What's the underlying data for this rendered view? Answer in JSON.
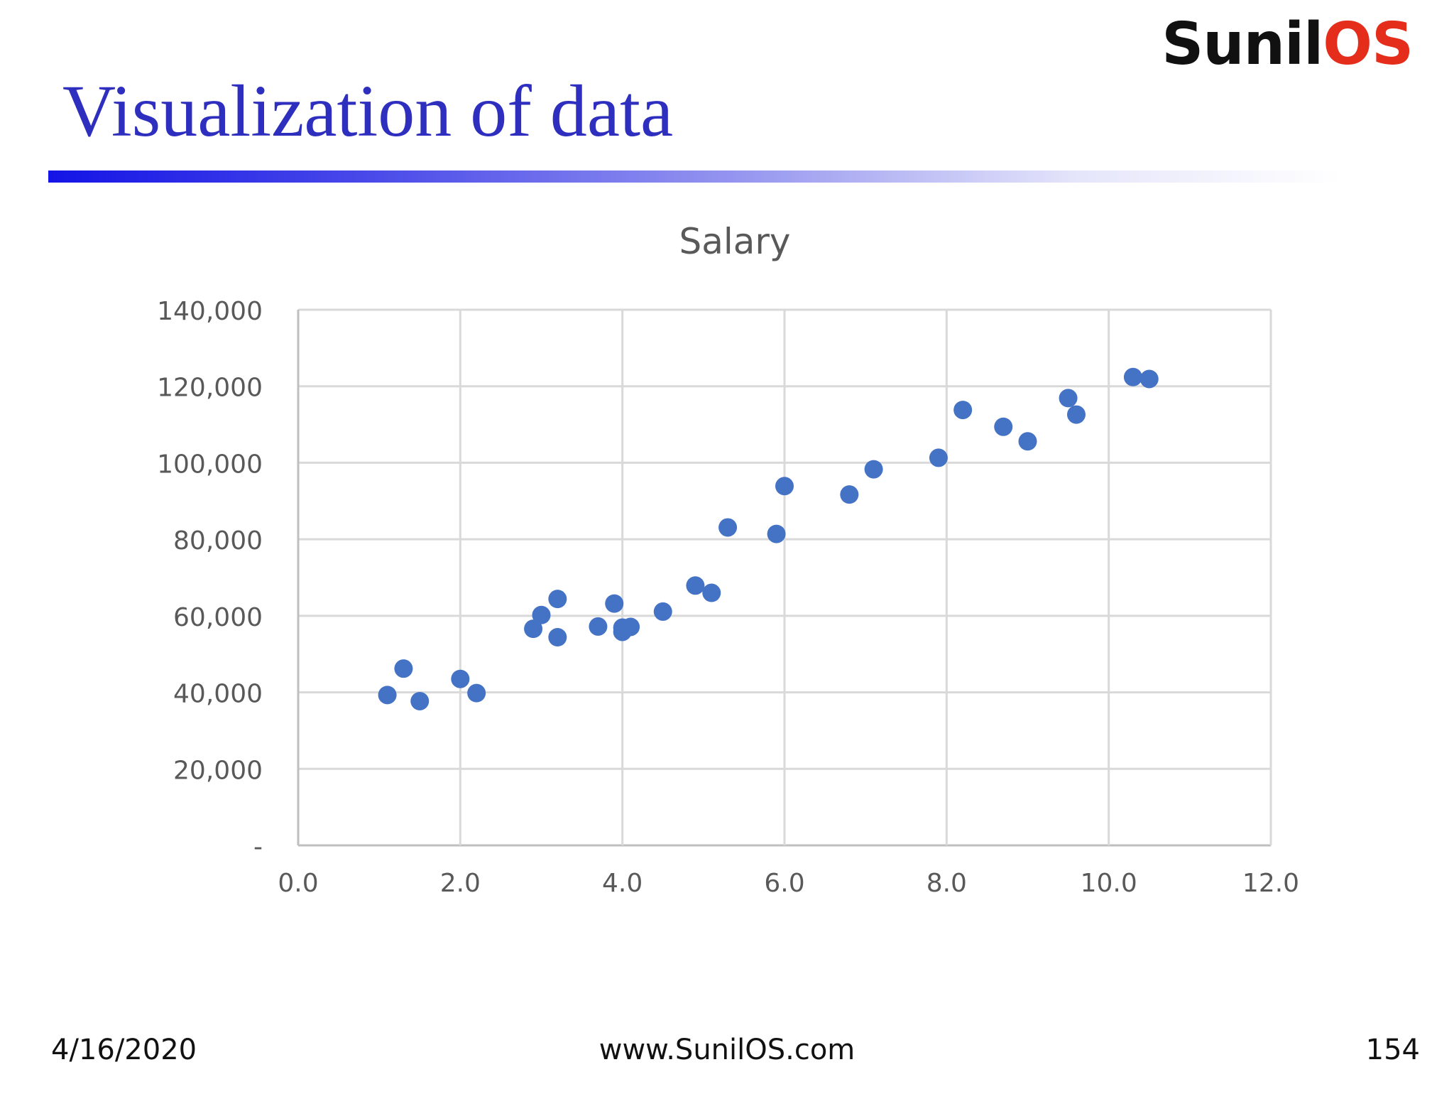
{
  "header": {
    "logo_part1": "Sunil",
    "logo_part2": "OS",
    "title": "Visualization of data"
  },
  "colors": {
    "title": "#2f2fbf",
    "logo_dark": "#111111",
    "logo_accent": "#e52d1c",
    "marker": "#4472c4",
    "grid": "#d9d9d9"
  },
  "chart_data": {
    "type": "scatter",
    "title": "Salary",
    "xlabel": "",
    "ylabel": "",
    "xlim": [
      0,
      12
    ],
    "ylim": [
      0,
      140000
    ],
    "x_ticks": [
      0,
      2,
      4,
      6,
      8,
      10,
      12
    ],
    "x_tick_labels": [
      "0.0",
      "2.0",
      "4.0",
      "6.0",
      "8.0",
      "10.0",
      "12.0"
    ],
    "y_ticks": [
      0,
      20000,
      40000,
      60000,
      80000,
      100000,
      120000,
      140000
    ],
    "y_tick_labels": [
      "-",
      "20,000",
      "40,000",
      "60,000",
      "80,000",
      "100,000",
      "120,000",
      "140,000"
    ],
    "grid": true,
    "legend": "none",
    "points": [
      {
        "x": 1.1,
        "y": 39300
      },
      {
        "x": 1.3,
        "y": 46200
      },
      {
        "x": 1.5,
        "y": 37700
      },
      {
        "x": 2.0,
        "y": 43500
      },
      {
        "x": 2.2,
        "y": 39800
      },
      {
        "x": 2.9,
        "y": 56600
      },
      {
        "x": 3.0,
        "y": 60200
      },
      {
        "x": 3.2,
        "y": 54400
      },
      {
        "x": 3.2,
        "y": 64400
      },
      {
        "x": 3.7,
        "y": 57200
      },
      {
        "x": 3.9,
        "y": 63200
      },
      {
        "x": 4.0,
        "y": 55800
      },
      {
        "x": 4.0,
        "y": 56900
      },
      {
        "x": 4.1,
        "y": 57100
      },
      {
        "x": 4.5,
        "y": 61100
      },
      {
        "x": 4.9,
        "y": 67900
      },
      {
        "x": 5.1,
        "y": 66000
      },
      {
        "x": 5.3,
        "y": 83100
      },
      {
        "x": 5.9,
        "y": 81400
      },
      {
        "x": 6.0,
        "y": 93900
      },
      {
        "x": 6.8,
        "y": 91700
      },
      {
        "x": 7.1,
        "y": 98300
      },
      {
        "x": 7.9,
        "y": 101300
      },
      {
        "x": 8.2,
        "y": 113800
      },
      {
        "x": 8.7,
        "y": 109400
      },
      {
        "x": 9.0,
        "y": 105600
      },
      {
        "x": 9.5,
        "y": 116900
      },
      {
        "x": 9.6,
        "y": 112600
      },
      {
        "x": 10.3,
        "y": 122400
      },
      {
        "x": 10.5,
        "y": 121900
      }
    ]
  },
  "footer": {
    "date": "4/16/2020",
    "url": "www.SunilOS.com",
    "page": "154"
  }
}
